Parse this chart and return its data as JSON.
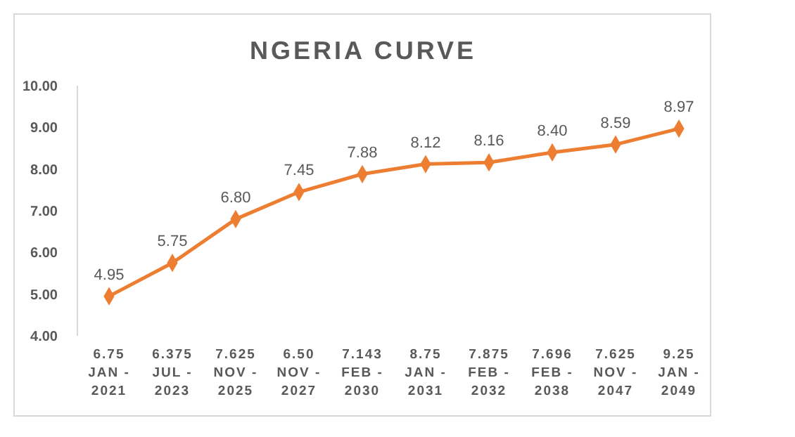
{
  "chart_data": {
    "type": "line",
    "title": "NGERIA CURVE",
    "categories": [
      "6.75\nJAN -\n2021",
      "6.375\nJUL -\n2023",
      "7.625\nNOV -\n2025",
      "6.50\nNOV -\n2027",
      "7.143\nFEB -\n2030",
      "8.75\nJAN -\n2031",
      "7.875\nFEB -\n2032",
      "7.696\nFEB -\n2038",
      "7.625\nNOV -\n2047",
      "9.25\nJAN -\n2049"
    ],
    "series": [
      {
        "color": "#ed7d31",
        "values": [
          4.95,
          5.75,
          6.8,
          7.45,
          7.88,
          8.12,
          8.16,
          8.4,
          8.59,
          8.97
        ],
        "value_labels": [
          "4.95",
          "5.75",
          "6.80",
          "7.45",
          "7.88",
          "8.12",
          "8.16",
          "8.40",
          "8.59",
          "8.97"
        ]
      }
    ],
    "ylim": [
      4,
      10
    ],
    "yticks": [
      {
        "value": 4,
        "label": "4.00"
      },
      {
        "value": 5,
        "label": "5.00"
      },
      {
        "value": 6,
        "label": "6.00"
      },
      {
        "value": 7,
        "label": "7.00"
      },
      {
        "value": 8,
        "label": "8.00"
      },
      {
        "value": 9,
        "label": "9.00"
      },
      {
        "value": 10,
        "label": "10.00"
      }
    ],
    "marker": "diamond",
    "grid": false
  }
}
